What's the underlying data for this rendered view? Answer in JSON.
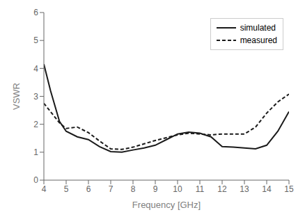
{
  "chart_data": {
    "type": "line",
    "x": [
      4.0,
      4.3,
      4.7,
      5.0,
      5.5,
      6.0,
      6.5,
      7.0,
      7.5,
      8.0,
      8.5,
      9.0,
      9.5,
      10.0,
      10.5,
      11.0,
      11.5,
      12.0,
      12.5,
      13.0,
      13.5,
      14.0,
      14.5,
      15.0
    ],
    "series": [
      {
        "name": "simulated",
        "color": "#1a1a1a",
        "line_style": "solid",
        "values": [
          4.15,
          3.2,
          2.1,
          1.75,
          1.55,
          1.45,
          1.2,
          1.02,
          1.0,
          1.08,
          1.15,
          1.25,
          1.45,
          1.65,
          1.72,
          1.68,
          1.55,
          1.2,
          1.18,
          1.15,
          1.12,
          1.25,
          1.75,
          2.45
        ]
      },
      {
        "name": "measured",
        "color": "#1a1a1a",
        "line_style": "dashed",
        "values": [
          2.75,
          2.45,
          2.05,
          1.85,
          1.9,
          1.7,
          1.4,
          1.12,
          1.1,
          1.18,
          1.3,
          1.42,
          1.52,
          1.62,
          1.68,
          1.65,
          1.62,
          1.65,
          1.65,
          1.65,
          1.9,
          2.4,
          2.8,
          3.08
        ]
      }
    ],
    "xlabel": "Frequency [GHz]",
    "ylabel": "VSWR",
    "xlim": [
      4,
      15
    ],
    "ylim": [
      0,
      6
    ],
    "xticks": [
      4,
      5,
      6,
      7,
      8,
      9,
      10,
      11,
      12,
      13,
      14,
      15
    ],
    "yticks": [
      0,
      1,
      2,
      3,
      4,
      5,
      6
    ],
    "grid": false,
    "legend": "upper right"
  }
}
